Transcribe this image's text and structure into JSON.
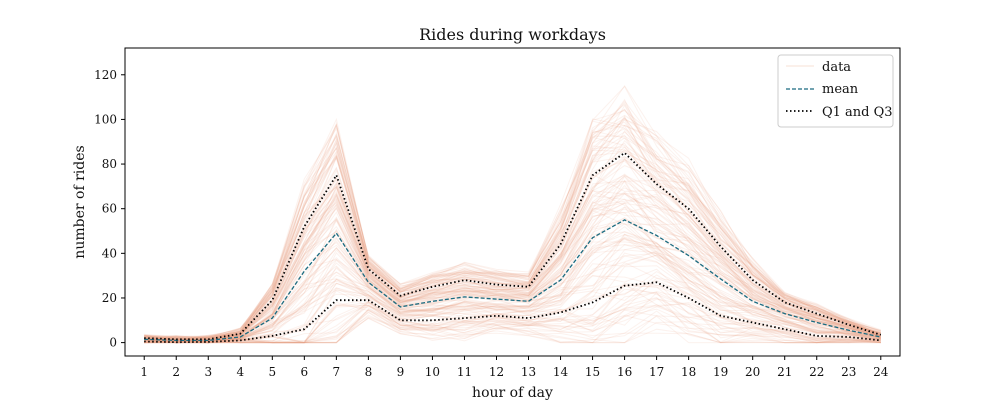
{
  "chart_data": {
    "type": "line",
    "title": "Rides during workdays",
    "xlabel": "hour of day",
    "ylabel": "number of rides",
    "x": [
      1,
      2,
      3,
      4,
      5,
      6,
      7,
      8,
      9,
      10,
      11,
      12,
      13,
      14,
      15,
      16,
      17,
      18,
      19,
      20,
      21,
      22,
      23,
      24
    ],
    "xlim": [
      0.4,
      24.6
    ],
    "ylim": [
      -6,
      132
    ],
    "yticks": [
      0,
      20,
      40,
      60,
      80,
      100,
      120
    ],
    "grid": false,
    "legend_position": "top-right",
    "series": [
      {
        "name": "data",
        "style": "thin-translucent",
        "color": "#e8a587"
      },
      {
        "name": "mean",
        "style": "dashed",
        "color": "#1a6b80",
        "values": [
          1.5,
          1,
          1,
          2.5,
          11,
          32,
          49,
          27,
          16,
          18.5,
          20.5,
          19.5,
          18.5,
          28,
          47,
          55,
          48,
          39,
          28.5,
          18.5,
          13,
          9,
          5.5,
          2.5
        ]
      },
      {
        "name": "Q1 and Q3",
        "style": "dotted",
        "color": "#000000",
        "q1": [
          0.5,
          0.2,
          0.3,
          1,
          3,
          6,
          19,
          19,
          10,
          10,
          11,
          12,
          11,
          13.5,
          18,
          25.5,
          27,
          20,
          12,
          9,
          6,
          3,
          2.5,
          1
        ],
        "q3": [
          2,
          1.5,
          1.5,
          4,
          19,
          52,
          75,
          33,
          21,
          25,
          28,
          26,
          25,
          44,
          75,
          85,
          71,
          60,
          43,
          28,
          18,
          13,
          8,
          3.5
        ]
      }
    ]
  }
}
